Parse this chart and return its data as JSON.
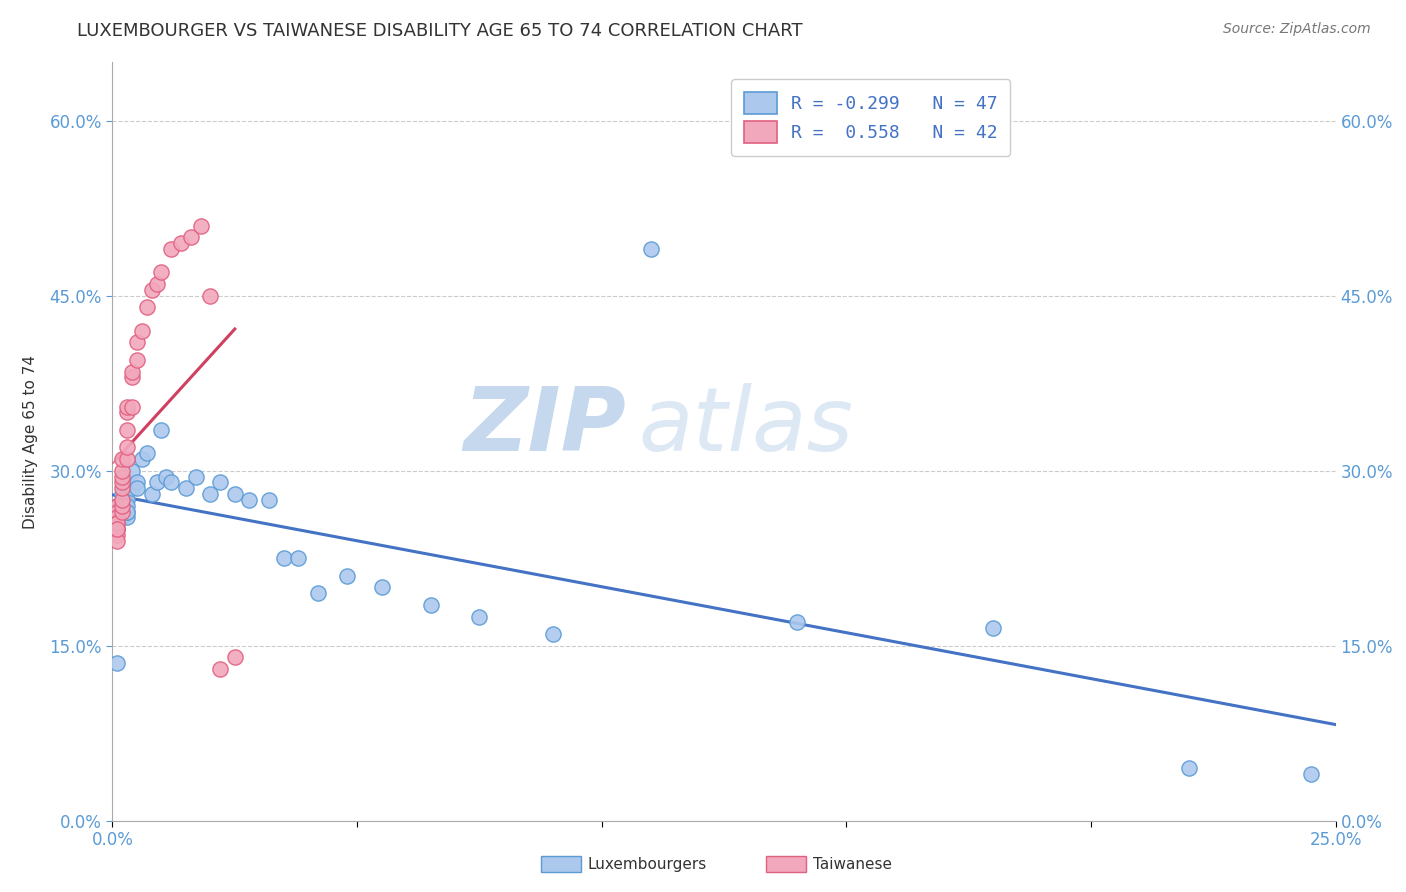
{
  "title": "LUXEMBOURGER VS TAIWANESE DISABILITY AGE 65 TO 74 CORRELATION CHART",
  "source": "Source: ZipAtlas.com",
  "ylabel": "Disability Age 65 to 74",
  "xlim": [
    0.0,
    0.25
  ],
  "ylim": [
    0.0,
    0.65
  ],
  "xticks": [
    0.0,
    0.05,
    0.1,
    0.15,
    0.2,
    0.25
  ],
  "yticks": [
    0.0,
    0.15,
    0.3,
    0.45,
    0.6
  ],
  "lux_R": -0.299,
  "lux_N": 47,
  "tai_R": 0.558,
  "tai_N": 42,
  "lux_color": "#adc8ed",
  "tai_color": "#f2a8bc",
  "lux_edge_color": "#5b9bd5",
  "tai_edge_color": "#e06080",
  "lux_line_color": "#4472c4",
  "tai_line_color": "#d04060",
  "legend_lux_label": "Luxembourgers",
  "legend_tai_label": "Taiwanese",
  "watermark_zip": "ZIP",
  "watermark_atlas": "atlas",
  "lux_x": [
    0.001,
    0.001,
    0.001,
    0.001,
    0.001,
    0.002,
    0.002,
    0.002,
    0.002,
    0.002,
    0.002,
    0.003,
    0.003,
    0.003,
    0.003,
    0.003,
    0.004,
    0.004,
    0.005,
    0.005,
    0.006,
    0.007,
    0.008,
    0.009,
    0.01,
    0.011,
    0.012,
    0.015,
    0.017,
    0.02,
    0.022,
    0.025,
    0.028,
    0.032,
    0.035,
    0.038,
    0.042,
    0.048,
    0.055,
    0.065,
    0.075,
    0.09,
    0.11,
    0.14,
    0.18,
    0.22,
    0.245
  ],
  "lux_y": [
    0.135,
    0.26,
    0.27,
    0.25,
    0.255,
    0.265,
    0.26,
    0.27,
    0.275,
    0.26,
    0.28,
    0.275,
    0.26,
    0.265,
    0.27,
    0.265,
    0.3,
    0.285,
    0.29,
    0.285,
    0.31,
    0.315,
    0.28,
    0.29,
    0.335,
    0.295,
    0.29,
    0.285,
    0.295,
    0.28,
    0.29,
    0.28,
    0.275,
    0.275,
    0.225,
    0.225,
    0.195,
    0.21,
    0.2,
    0.185,
    0.175,
    0.16,
    0.49,
    0.17,
    0.165,
    0.045,
    0.04
  ],
  "tai_x": [
    0.001,
    0.001,
    0.001,
    0.001,
    0.001,
    0.001,
    0.001,
    0.001,
    0.001,
    0.001,
    0.001,
    0.001,
    0.002,
    0.002,
    0.002,
    0.002,
    0.002,
    0.002,
    0.002,
    0.002,
    0.003,
    0.003,
    0.003,
    0.003,
    0.003,
    0.004,
    0.004,
    0.004,
    0.005,
    0.005,
    0.006,
    0.007,
    0.008,
    0.009,
    0.01,
    0.012,
    0.014,
    0.016,
    0.018,
    0.02,
    0.022,
    0.025
  ],
  "tai_y": [
    0.26,
    0.265,
    0.265,
    0.27,
    0.265,
    0.26,
    0.255,
    0.25,
    0.245,
    0.24,
    0.255,
    0.25,
    0.265,
    0.27,
    0.275,
    0.285,
    0.29,
    0.295,
    0.3,
    0.31,
    0.31,
    0.32,
    0.335,
    0.35,
    0.355,
    0.355,
    0.38,
    0.385,
    0.395,
    0.41,
    0.42,
    0.44,
    0.455,
    0.46,
    0.47,
    0.49,
    0.495,
    0.5,
    0.51,
    0.45,
    0.13,
    0.14
  ]
}
